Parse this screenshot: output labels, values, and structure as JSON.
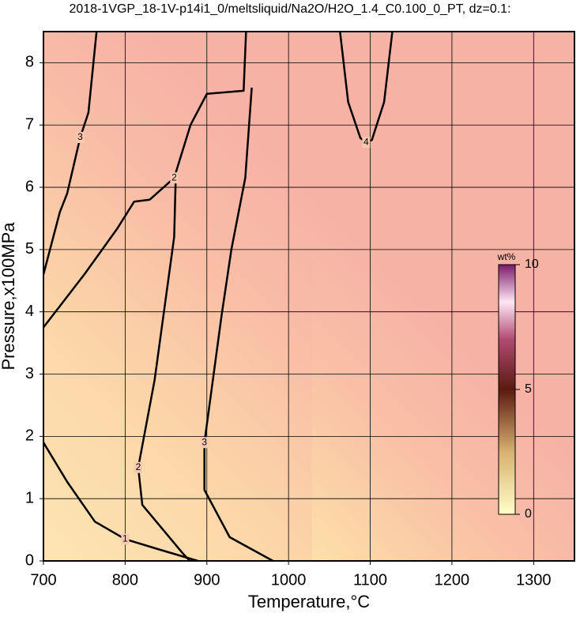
{
  "chart_data": {
    "type": "contour",
    "title": "2018-1VGP_18-1V-p14i1_0/meltsliquid/Na2O/H2O_1.4_C0.100_0_PT, dz=0.1:",
    "x_label": "Temperature,°C",
    "y_label": "Pressure,x100MPa",
    "xlim": [
      700,
      1350
    ],
    "ylim": [
      0,
      8.5
    ],
    "xticks": [
      700,
      800,
      900,
      1000,
      1100,
      1200,
      1300
    ],
    "yticks": [
      0,
      1,
      2,
      3,
      4,
      5,
      6,
      7,
      8
    ],
    "grid": true,
    "contours": [
      {
        "level": 1,
        "x": [
          700,
          729,
          763,
          800,
          840,
          889
        ],
        "y": [
          1.9,
          1.27,
          0.63,
          0.35,
          0.19,
          0
        ]
      },
      {
        "level": 2,
        "x": [
          862,
          860,
          836,
          816,
          821,
          870,
          879
        ],
        "y": [
          6.2,
          5.2,
          2.9,
          1.5,
          0.9,
          0.13,
          0
        ]
      },
      {
        "level": 2,
        "x": [
          700,
          750,
          790,
          811,
          830,
          860,
          880,
          900,
          945,
          948
        ],
        "y": [
          3.75,
          4.6,
          5.33,
          5.77,
          5.8,
          6.15,
          7,
          7.5,
          7.55,
          8.5
        ]
      },
      {
        "level": 3,
        "x": [
          700,
          720,
          729,
          745,
          755,
          765
        ],
        "y": [
          4.6,
          5.6,
          5.9,
          6.8,
          7.2,
          8.5
        ]
      },
      {
        "level": 3,
        "x": [
          955,
          947,
          930,
          918,
          897,
          897,
          928,
          981
        ],
        "y": [
          7.6,
          6.15,
          5,
          3.94,
          1.9,
          1.14,
          0.38,
          0
        ]
      },
      {
        "level": 4,
        "x": [
          1063,
          1073,
          1088,
          1095,
          1102,
          1117,
          1127
        ],
        "y": [
          8.5,
          7.37,
          6.79,
          6.72,
          6.76,
          7.37,
          8.5
        ]
      }
    ],
    "colorbar": {
      "label": "wt%",
      "lim": [
        0,
        10
      ],
      "ticks": [
        0,
        5,
        10
      ]
    }
  }
}
